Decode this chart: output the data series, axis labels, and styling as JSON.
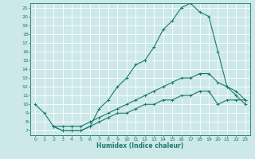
{
  "xlabel": "Humidex (Indice chaleur)",
  "bg_color": "#cce8e8",
  "grid_color": "#ffffff",
  "line_color": "#1a7a6e",
  "xlim": [
    -0.5,
    23.5
  ],
  "ylim": [
    6.5,
    21.5
  ],
  "xticks": [
    0,
    1,
    2,
    3,
    4,
    5,
    6,
    7,
    8,
    9,
    10,
    11,
    12,
    13,
    14,
    15,
    16,
    17,
    18,
    19,
    20,
    21,
    22,
    23
  ],
  "yticks": [
    7,
    8,
    9,
    10,
    11,
    12,
    13,
    14,
    15,
    16,
    17,
    18,
    19,
    20,
    21
  ],
  "line1_x": [
    0,
    1,
    2,
    3,
    4,
    5,
    6,
    7,
    8,
    9,
    10,
    11,
    12,
    13,
    14,
    15,
    16,
    17,
    18,
    19,
    20,
    21,
    22,
    23
  ],
  "line1_y": [
    10,
    9,
    7.5,
    7,
    7,
    7,
    7.5,
    9.5,
    10.5,
    12,
    13,
    14.5,
    15,
    16.5,
    18.5,
    19.5,
    21,
    21.5,
    20.5,
    20,
    16,
    12,
    11,
    10
  ],
  "line2_x": [
    2,
    3,
    4,
    5,
    6,
    7,
    8,
    9,
    10,
    11,
    12,
    13,
    14,
    15,
    16,
    17,
    18,
    19,
    20,
    21,
    22,
    23
  ],
  "line2_y": [
    7.5,
    7.5,
    7.5,
    7.5,
    8,
    8.5,
    9,
    9.5,
    10,
    10.5,
    11,
    11.5,
    12,
    12.5,
    13,
    13,
    13.5,
    13.5,
    12.5,
    12,
    11.5,
    10.5
  ],
  "line3_x": [
    2,
    3,
    4,
    5,
    6,
    7,
    8,
    9,
    10,
    11,
    12,
    13,
    14,
    15,
    16,
    17,
    18,
    19,
    20,
    21,
    22,
    23
  ],
  "line3_y": [
    7.5,
    7,
    7,
    7,
    7.5,
    8,
    8.5,
    9,
    9,
    9.5,
    10,
    10,
    10.5,
    10.5,
    11,
    11,
    11.5,
    11.5,
    10,
    10.5,
    10.5,
    10.5
  ]
}
